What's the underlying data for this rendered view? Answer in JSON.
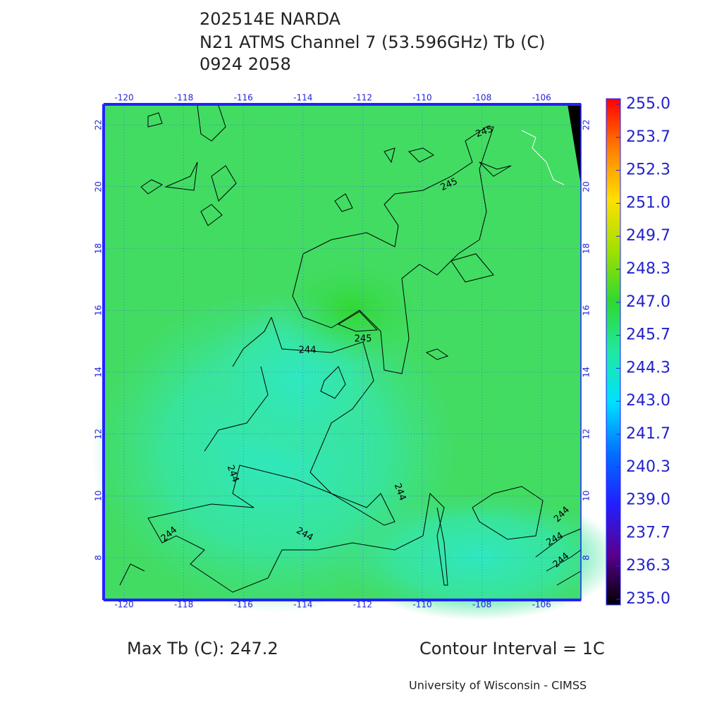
{
  "header": {
    "lines": [
      "202514E NARDA",
      "N21 ATMS Channel 7 (53.596GHz) Tb (C)",
      "0924 2058"
    ]
  },
  "map": {
    "lon_ticks": [
      "-120",
      "-118",
      "-116",
      "-114",
      "-112",
      "-110",
      "-108",
      "-106"
    ],
    "lat_ticks": [
      "8",
      "10",
      "12",
      "14",
      "16",
      "18",
      "20",
      "22"
    ],
    "contour_labels": [
      "245",
      "245",
      "245",
      "244",
      "244",
      "244",
      "244",
      "244",
      "244",
      "244",
      "244"
    ]
  },
  "colorbar": {
    "labels": [
      "255.0",
      "253.7",
      "252.3",
      "251.0",
      "249.7",
      "248.3",
      "247.0",
      "245.7",
      "244.3",
      "243.0",
      "241.7",
      "240.3",
      "239.0",
      "237.7",
      "236.3",
      "235.0"
    ]
  },
  "footer": {
    "max_tb": "Max Tb (C): 247.2",
    "contour_interval": "Contour Interval = 1C",
    "credit": "University of Wisconsin - CIMSS"
  }
}
